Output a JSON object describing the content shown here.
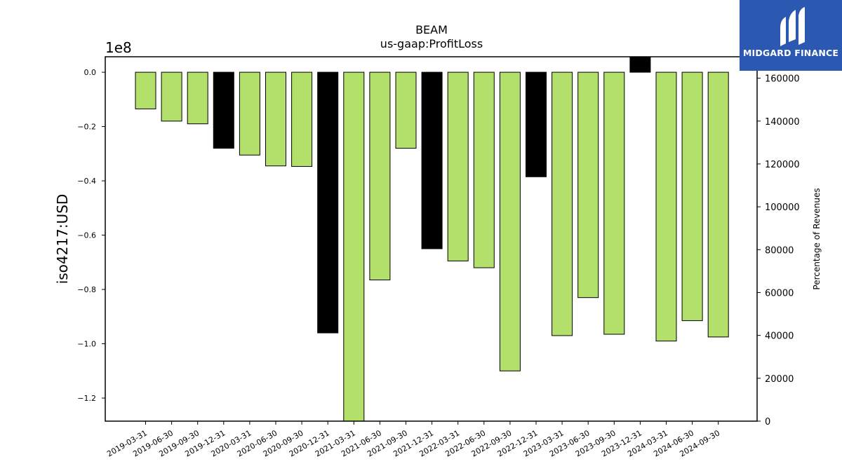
{
  "brand": {
    "name": "MIDGARD FINANCE",
    "color": "#2b59b1"
  },
  "chart_data": {
    "type": "bar",
    "title": "BEAM",
    "subtitle": "us-gaap:ProfitLoss",
    "ylabel": "iso4217:USD",
    "y_offset_label": "1e8",
    "y2label": "Percentage of Revenues",
    "ylim": [
      -1.285,
      0.057
    ],
    "y_ticks": [
      0.0,
      -0.2,
      -0.4,
      -0.6,
      -0.8,
      -1.0,
      -1.2
    ],
    "y_tick_labels": [
      "0.0",
      "−0.2",
      "−0.4",
      "−0.6",
      "−0.8",
      "−1.0",
      "−1.2"
    ],
    "y2lim": [
      0,
      170000
    ],
    "y2_ticks": [
      0,
      20000,
      40000,
      60000,
      80000,
      100000,
      120000,
      140000,
      160000
    ],
    "y2_tick_labels": [
      "0",
      "20000",
      "40000",
      "60000",
      "80000",
      "100000",
      "120000",
      "140000",
      "160000"
    ],
    "categories": [
      "2019-03-31",
      "2019-06-30",
      "2019-09-30",
      "2019-12-31",
      "2020-03-31",
      "2020-06-30",
      "2020-09-30",
      "2020-12-31",
      "2021-03-31",
      "2021-06-30",
      "2021-09-30",
      "2021-12-31",
      "2022-03-31",
      "2022-06-30",
      "2022-09-30",
      "2022-12-31",
      "2023-03-31",
      "2023-06-30",
      "2023-09-30",
      "2023-12-31",
      "2024-03-31",
      "2024-06-30",
      "2024-09-30"
    ],
    "values": [
      -0.135,
      -0.18,
      -0.19,
      -0.28,
      -0.305,
      -0.345,
      -0.347,
      -0.96,
      -1.3,
      -0.765,
      -0.28,
      -0.65,
      -0.695,
      -0.72,
      -1.1,
      -0.385,
      -0.97,
      -0.83,
      -0.965,
      0.057,
      -0.99,
      -0.915,
      -0.975
    ],
    "bar_colors": [
      "#b3df6b",
      "#b3df6b",
      "#b3df6b",
      "#000000",
      "#b3df6b",
      "#b3df6b",
      "#b3df6b",
      "#000000",
      "#b3df6b",
      "#b3df6b",
      "#b3df6b",
      "#000000",
      "#b3df6b",
      "#b3df6b",
      "#b3df6b",
      "#000000",
      "#b3df6b",
      "#b3df6b",
      "#b3df6b",
      "#000000",
      "#b3df6b",
      "#b3df6b",
      "#b3df6b"
    ],
    "grid": false
  }
}
